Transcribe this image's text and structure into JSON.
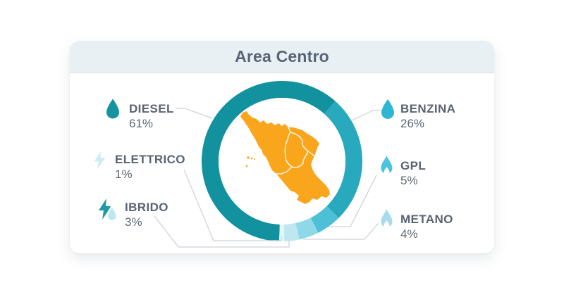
{
  "card": {
    "title": "Area Centro",
    "header_bg": "#e9f0f4",
    "title_color": "#596475"
  },
  "chart_data": {
    "type": "pie",
    "variant": "donut",
    "title": "Area Centro",
    "unit": "%",
    "direction": "clockwise",
    "start_angle_deg_cw_from_top": 182,
    "outer_radius": 114,
    "inner_radius": 90,
    "center": {
      "x": 400,
      "y": 229
    },
    "center_graphic": "central-italy-map",
    "center_graphic_color": "#f9a61d",
    "connector_color": "#d5d9dd",
    "series": [
      {
        "label": "DIESEL",
        "value": 61,
        "display": "61%",
        "color": "#12919e",
        "icon": "drop-icon",
        "icon_color": "#17929f"
      },
      {
        "label": "BENZINA",
        "value": 26,
        "display": "26%",
        "color": "#29a9be",
        "icon": "drop-icon",
        "icon_color": "#2fb6d4"
      },
      {
        "label": "GPL",
        "value": 5,
        "display": "5%",
        "color": "#4dc0d6",
        "icon": "flame-icon",
        "icon_color": "#4cc3de"
      },
      {
        "label": "METANO",
        "value": 4,
        "display": "4%",
        "color": "#8ed8e8",
        "icon": "flame-icon",
        "icon_color": "#a6dceb"
      },
      {
        "label": "IBRIDO",
        "value": 3,
        "display": "3%",
        "color": "#bfe7f0",
        "icon": "bolt-drop-icon",
        "icon_color": "#1b9aa8",
        "icon_color2": "#bfe7f0"
      },
      {
        "label": "ELETTRICO",
        "value": 1,
        "display": "1%",
        "color": "#e6f5f9",
        "icon": "bolt-icon",
        "icon_color": "#cfecf6"
      }
    ]
  }
}
